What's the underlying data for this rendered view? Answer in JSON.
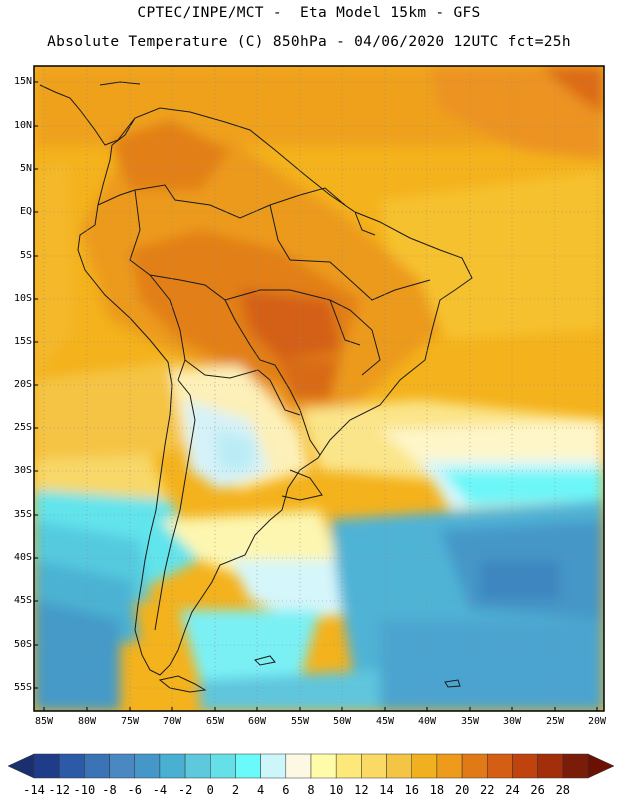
{
  "header": {
    "line1": "CPTEC/INPE/MCT -  Eta Model 15km - GFS",
    "line2": "Absolute Temperature (C) 850hPa - 04/06/2020 12UTC fct=25h"
  },
  "latitude_labels": [
    "15N",
    "10N",
    "5N",
    "EQ",
    "5S",
    "10S",
    "15S",
    "20S",
    "25S",
    "30S",
    "35S",
    "40S",
    "45S",
    "50S",
    "55S"
  ],
  "longitude_labels": [
    "85W",
    "80W",
    "75W",
    "70W",
    "65W",
    "60W",
    "55W",
    "50W",
    "45W",
    "40W",
    "35W",
    "30W",
    "25W",
    "20W"
  ],
  "colorbar": {
    "labels": [
      "-14",
      "-12",
      "-10",
      "-8",
      "-6",
      "-4",
      "-2",
      "0",
      "2",
      "4",
      "6",
      "8",
      "10",
      "12",
      "14",
      "16",
      "18",
      "20",
      "22",
      "24",
      "26",
      "28"
    ],
    "colors": [
      "#1f3c8a",
      "#2c5aa6",
      "#3a74b6",
      "#4a88c2",
      "#4497c8",
      "#4ab0d2",
      "#5ec8dd",
      "#66e0e8",
      "#6bfafa",
      "#cdf6fb",
      "#fdf8e3",
      "#fefca8",
      "#fde97a",
      "#fad964",
      "#f4c545",
      "#f0b020",
      "#ee9a1a",
      "#e07a16",
      "#d45e13",
      "#c0420f",
      "#a32e0c",
      "#7a1d08"
    ],
    "left_triangle_color": "#1a2f6e",
    "right_triangle_color": "#6a1104"
  }
}
